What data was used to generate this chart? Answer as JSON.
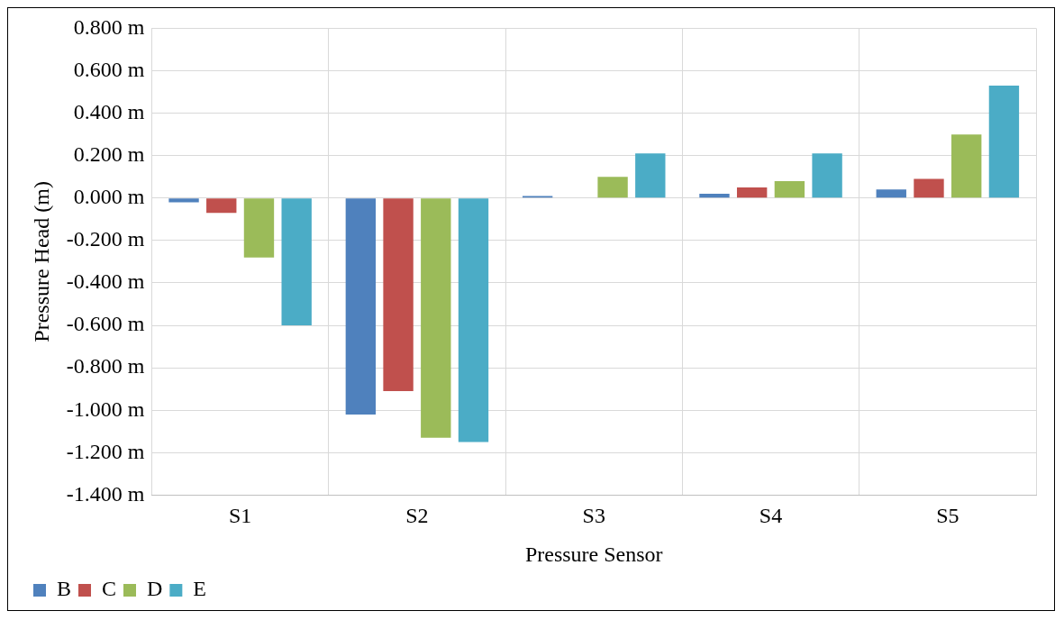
{
  "chart_data": {
    "type": "bar",
    "xlabel": "Pressure Sensor",
    "ylabel": "Pressure Head (m)",
    "categories": [
      "S1",
      "S2",
      "S3",
      "S4",
      "S5"
    ],
    "series": [
      {
        "name": "B",
        "color": "#4f81bd",
        "values": [
          -0.02,
          -1.02,
          0.01,
          0.02,
          0.04
        ]
      },
      {
        "name": "C",
        "color": "#c0504d",
        "values": [
          -0.07,
          -0.91,
          0.0,
          0.05,
          0.09
        ]
      },
      {
        "name": "D",
        "color": "#9bbb59",
        "values": [
          -0.28,
          -1.13,
          0.1,
          0.08,
          0.3
        ]
      },
      {
        "name": "E",
        "color": "#4bacc6",
        "values": [
          -0.6,
          -1.15,
          0.21,
          0.21,
          0.53
        ]
      }
    ],
    "ylim": [
      -1.4,
      0.8
    ],
    "yticks": [
      {
        "value": -1.4,
        "label": "-1.400 m"
      },
      {
        "value": -1.2,
        "label": "-1.200 m"
      },
      {
        "value": -1.0,
        "label": "-1.000 m"
      },
      {
        "value": -0.8,
        "label": "-0.800 m"
      },
      {
        "value": -0.6,
        "label": "-0.600 m"
      },
      {
        "value": -0.4,
        "label": "-0.400 m"
      },
      {
        "value": -0.2,
        "label": "-0.200 m"
      },
      {
        "value": 0,
        "label": "0.000 m"
      },
      {
        "value": 0.2,
        "label": "0.200 m"
      },
      {
        "value": 0.4,
        "label": "0.400 m"
      },
      {
        "value": 0.6,
        "label": "0.600 m"
      },
      {
        "value": 0.8,
        "label": "0.800 m"
      }
    ],
    "grid": true,
    "legend": "bottom left"
  }
}
